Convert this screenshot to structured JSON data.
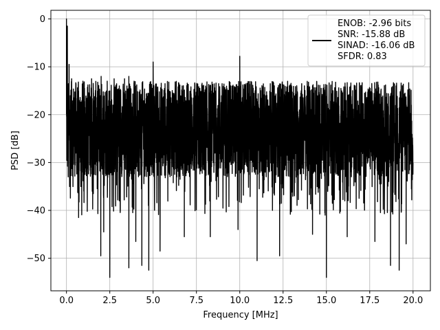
{
  "chart_data": {
    "type": "line",
    "title": "",
    "xlabel": "Frequency [MHz]",
    "ylabel": "PSD [dB]",
    "xlim": [
      -0.9,
      21.0
    ],
    "ylim": [
      -56.8,
      1.8
    ],
    "x_ticks": [
      0.0,
      2.5,
      5.0,
      7.5,
      10.0,
      12.5,
      15.0,
      17.5,
      20.0
    ],
    "x_tick_labels": [
      "0.0",
      "2.5",
      "5.0",
      "7.5",
      "10.0",
      "12.5",
      "15.0",
      "17.5",
      "20.0"
    ],
    "y_ticks": [
      0,
      -10,
      -20,
      -30,
      -40,
      -50
    ],
    "y_tick_labels": [
      "0",
      "−10",
      "−20",
      "−30",
      "−40",
      "−50"
    ],
    "grid": true,
    "legend_position": "top-right",
    "series": [
      {
        "name": "ENOB: -2.96 bits\nSNR: -15.88 dB\nSINAD: -16.06 dB\nSFDR: 0.83",
        "legend_lines": [
          "ENOB: -2.96 bits",
          "SNR: -15.88 dB",
          "SINAD: -16.06 dB",
          "SFDR: 0.83"
        ],
        "color": "#000000",
        "x_range": [
          0.0,
          20.0
        ],
        "noise_band_db": [
          -33,
          -13
        ],
        "noise_mean_db": -24,
        "peaks": [
          {
            "x": 0.0,
            "y": 0.0
          },
          {
            "x": 0.05,
            "y": -1.5
          },
          {
            "x": 0.15,
            "y": -9.5
          },
          {
            "x": 0.3,
            "y": -12.5
          },
          {
            "x": 0.55,
            "y": -14.0
          },
          {
            "x": 0.95,
            "y": -13.0
          },
          {
            "x": 1.45,
            "y": -12.5
          },
          {
            "x": 2.0,
            "y": -12.0
          },
          {
            "x": 2.35,
            "y": -13.0
          },
          {
            "x": 2.75,
            "y": -12.5
          },
          {
            "x": 3.05,
            "y": -14.0
          },
          {
            "x": 3.35,
            "y": -12.5
          },
          {
            "x": 3.6,
            "y": -12.0
          },
          {
            "x": 3.9,
            "y": -13.0
          },
          {
            "x": 5.0,
            "y": -9.0
          },
          {
            "x": 10.0,
            "y": -7.8
          },
          {
            "x": 12.9,
            "y": -13.8
          },
          {
            "x": 14.7,
            "y": -14.5
          },
          {
            "x": 16.4,
            "y": -14.0
          },
          {
            "x": 19.3,
            "y": -14.8
          },
          {
            "x": 19.9,
            "y": -18.0
          }
        ],
        "dips": [
          {
            "x": 0.1,
            "y": -33.0
          },
          {
            "x": 0.35,
            "y": -32.5
          },
          {
            "x": 0.7,
            "y": -41.5
          },
          {
            "x": 1.0,
            "y": -36.0
          },
          {
            "x": 1.55,
            "y": -36.5
          },
          {
            "x": 1.98,
            "y": -49.5
          },
          {
            "x": 2.15,
            "y": -44.5
          },
          {
            "x": 2.5,
            "y": -54.0
          },
          {
            "x": 3.05,
            "y": -38.0
          },
          {
            "x": 3.6,
            "y": -52.0
          },
          {
            "x": 4.0,
            "y": -46.5
          },
          {
            "x": 4.35,
            "y": -51.5
          },
          {
            "x": 4.75,
            "y": -52.5
          },
          {
            "x": 5.4,
            "y": -48.5
          },
          {
            "x": 6.8,
            "y": -45.5
          },
          {
            "x": 8.3,
            "y": -45.5
          },
          {
            "x": 9.9,
            "y": -44.0
          },
          {
            "x": 11.0,
            "y": -50.5
          },
          {
            "x": 12.3,
            "y": -49.5
          },
          {
            "x": 14.2,
            "y": -45.0
          },
          {
            "x": 15.0,
            "y": -54.0
          },
          {
            "x": 16.2,
            "y": -45.5
          },
          {
            "x": 17.8,
            "y": -46.5
          },
          {
            "x": 18.7,
            "y": -51.5
          },
          {
            "x": 19.2,
            "y": -52.5
          },
          {
            "x": 19.6,
            "y": -47.0
          }
        ]
      }
    ]
  }
}
